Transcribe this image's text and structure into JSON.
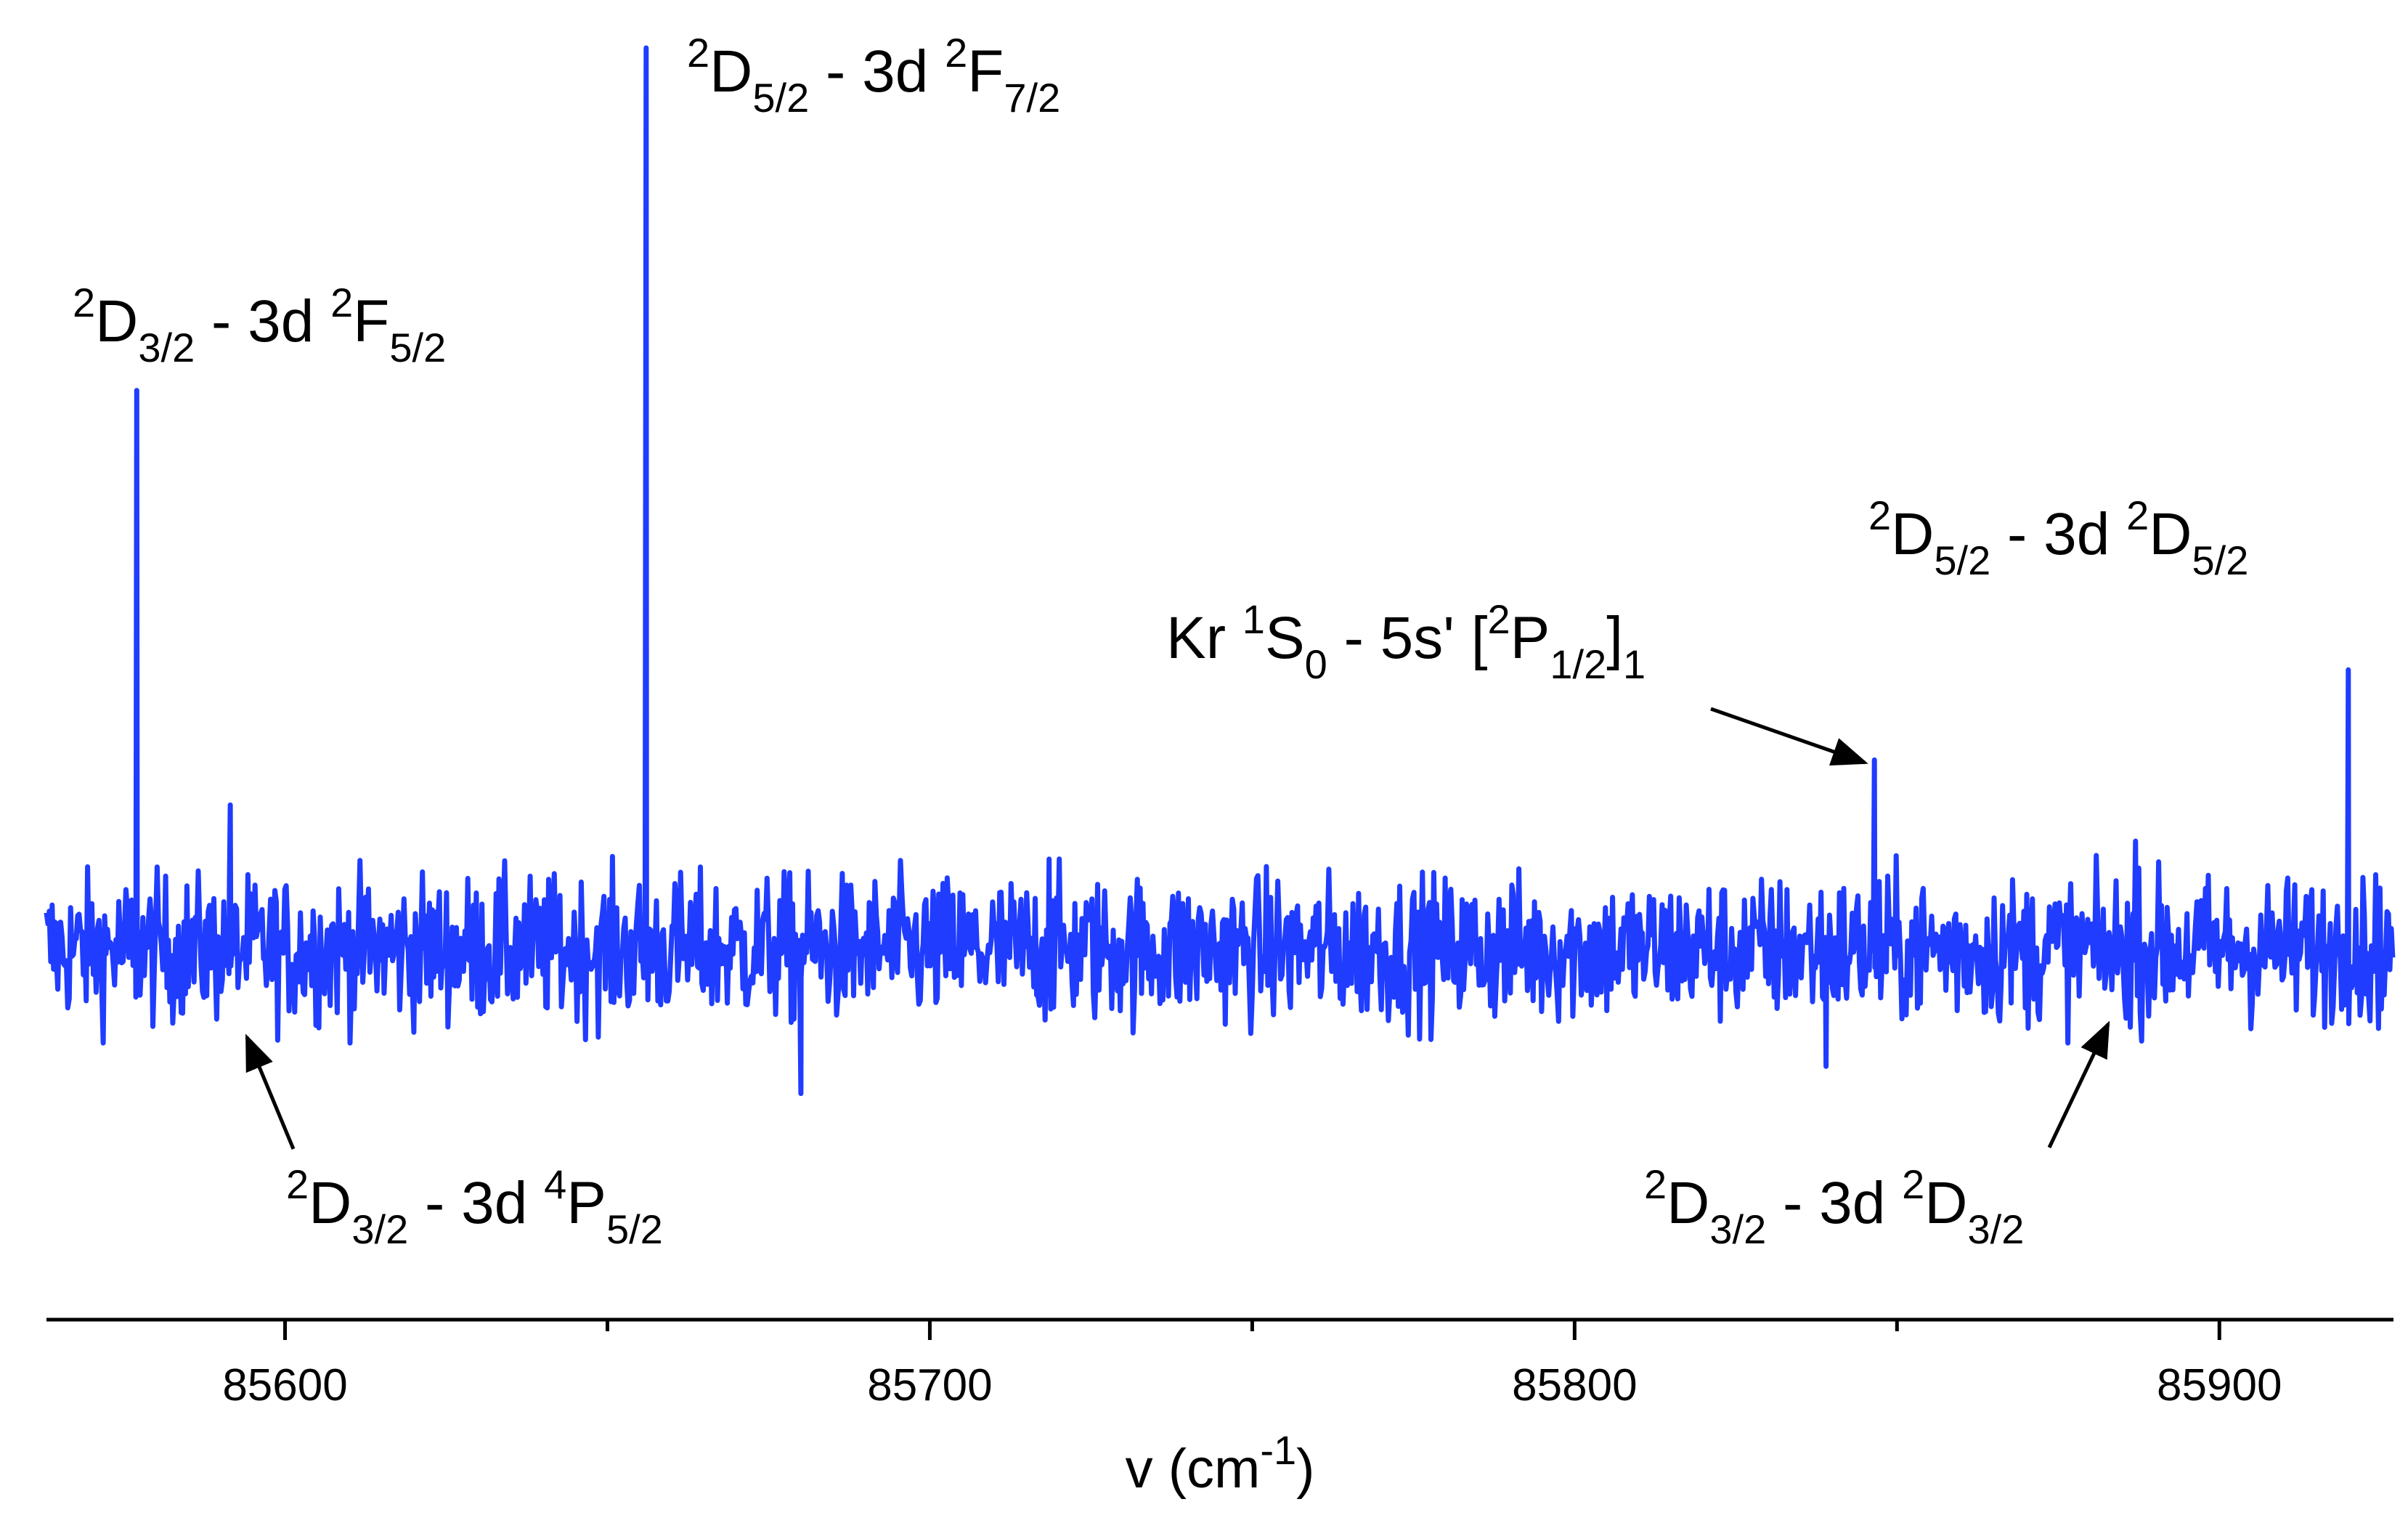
{
  "chart_data": {
    "type": "line",
    "xlabel": {
      "base": "v (cm",
      "sup": "-1",
      "tail": ")"
    },
    "ylabel": "",
    "xlim": [
      85563,
      85927
    ],
    "ylim": [
      -0.3,
      1.0
    ],
    "x_ticks": [
      85600,
      85700,
      85800,
      85900
    ],
    "x_tick_labels": [
      "85600",
      "85700",
      "85800",
      "85900"
    ],
    "x_minor_ticks": [
      85650,
      85750,
      85850
    ],
    "grid": false,
    "legend": "none",
    "colors": {
      "series": "#1f3cff",
      "axis": "#000000",
      "arrow": "#000000"
    },
    "series": [
      {
        "peaks": [
          {
            "x": 85577,
            "y": 0.62
          },
          {
            "x": 85591.5,
            "y": 0.16
          },
          {
            "x": 85656,
            "y": 1.0
          },
          {
            "x": 85680,
            "y": -0.16
          },
          {
            "x": 85718.5,
            "y": 0.1
          },
          {
            "x": 85839,
            "y": -0.13
          },
          {
            "x": 85846.5,
            "y": 0.21
          },
          {
            "x": 85887,
            "y": 0.12
          },
          {
            "x": 85920,
            "y": 0.31
          }
        ],
        "noise_amplitude": 0.04
      }
    ],
    "annotations": [
      {
        "parts": [
          [
            "sup",
            "2"
          ],
          [
            "n",
            "D"
          ],
          [
            "sub",
            "3/2"
          ],
          [
            "n",
            " - 3d "
          ],
          [
            "sup",
            "2"
          ],
          [
            "n",
            "F"
          ],
          [
            "sub",
            "5/2"
          ]
        ],
        "peak_x": 85577
      },
      {
        "parts": [
          [
            "sup",
            "2"
          ],
          [
            "n",
            "D"
          ],
          [
            "sub",
            "5/2"
          ],
          [
            "n",
            " - 3d "
          ],
          [
            "sup",
            "2"
          ],
          [
            "n",
            "F"
          ],
          [
            "sub",
            "7/2"
          ]
        ],
        "peak_x": 85656
      },
      {
        "parts": [
          [
            "sup",
            "2"
          ],
          [
            "n",
            "D"
          ],
          [
            "sub",
            "3/2"
          ],
          [
            "n",
            " - 3d "
          ],
          [
            "sup",
            "4"
          ],
          [
            "n",
            "P"
          ],
          [
            "sub",
            "5/2"
          ]
        ],
        "peak_x": 85591.5,
        "arrow": true
      },
      {
        "parts": [
          [
            "n",
            "Kr "
          ],
          [
            "sup",
            "1"
          ],
          [
            "n",
            "S"
          ],
          [
            "sub",
            "0"
          ],
          [
            "n",
            " - 5s' ["
          ],
          [
            "sup",
            "2"
          ],
          [
            "n",
            "P"
          ],
          [
            "sub",
            "1/2"
          ],
          [
            "n",
            "]"
          ],
          [
            "sub",
            "1"
          ]
        ],
        "peak_x": 85846.5,
        "arrow": true
      },
      {
        "parts": [
          [
            "sup",
            "2"
          ],
          [
            "n",
            "D"
          ],
          [
            "sub",
            "5/2"
          ],
          [
            "n",
            " - 3d "
          ],
          [
            "sup",
            "2"
          ],
          [
            "n",
            "D"
          ],
          [
            "sub",
            "5/2"
          ]
        ],
        "peak_x": 85920
      },
      {
        "parts": [
          [
            "sup",
            "2"
          ],
          [
            "n",
            "D"
          ],
          [
            "sub",
            "3/2"
          ],
          [
            "n",
            " - 3d "
          ],
          [
            "sup",
            "2"
          ],
          [
            "n",
            "D"
          ],
          [
            "sub",
            "3/2"
          ]
        ],
        "peak_x": 85887,
        "arrow": true
      }
    ]
  }
}
